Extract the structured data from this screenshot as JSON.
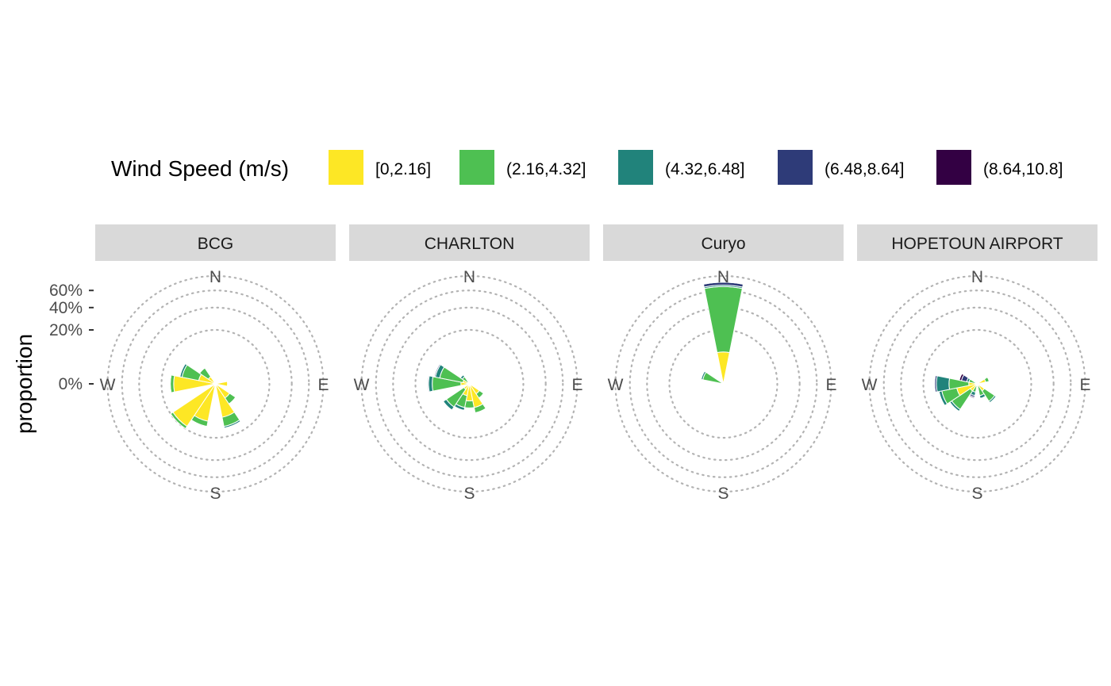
{
  "legend": {
    "title": "Wind Speed (m/s)",
    "items": [
      {
        "label": "[0,2.16]",
        "color": "#FDE725"
      },
      {
        "label": "(2.16,4.32]",
        "color": "#4EC052"
      },
      {
        "label": "(4.32,6.48]",
        "color": "#21837B"
      },
      {
        "label": "(6.48,8.64]",
        "color": "#2E3B78"
      },
      {
        "label": "(8.64,10.8]",
        "color": "#330043"
      }
    ]
  },
  "y_axis": {
    "title": "proportion",
    "ticks": [
      "0%",
      "20%",
      "40%",
      "60%"
    ]
  },
  "compass": {
    "n": "N",
    "e": "E",
    "s": "S",
    "w": "W"
  },
  "chart_data": {
    "type": "wind-rose (stacked polar bar)",
    "facets": [
      "BCG",
      "CHARLTON",
      "Curyo",
      "HOPETOUN AIRPORT"
    ],
    "series_names": [
      "[0,2.16]",
      "(2.16,4.32]",
      "(4.32,6.48]",
      "(6.48,8.64]",
      "(8.64,10.8]"
    ],
    "direction_sector_width_deg": 22.5,
    "radial_scale": "sqrt",
    "radial_breaks": [
      0,
      0.2,
      0.4,
      0.6,
      0.8
    ],
    "facet_data": [
      {
        "name": "BCG",
        "sectors": [
          {
            "dir": 90,
            "values": [
              0.01,
              0,
              0,
              0,
              0
            ]
          },
          {
            "dir": 135,
            "values": [
              0.02,
              0.02,
              0,
              0,
              0
            ]
          },
          {
            "dir": 157.5,
            "values": [
              0.08,
              0.05,
              0.01,
              0,
              0
            ]
          },
          {
            "dir": 202.5,
            "values": [
              0.1,
              0.03,
              0.005,
              0,
              0
            ]
          },
          {
            "dir": 225,
            "values": [
              0.18,
              0.02,
              0,
              0,
              0
            ]
          },
          {
            "dir": 270,
            "values": [
              0.12,
              0.02,
              0.005,
              0,
              0
            ]
          },
          {
            "dir": 292.5,
            "values": [
              0.02,
              0.06,
              0.01,
              0,
              0
            ]
          },
          {
            "dir": 315,
            "values": [
              0.005,
              0.02,
              0.002,
              0,
              0
            ]
          }
        ]
      },
      {
        "name": "CHARLTON",
        "sectors": [
          {
            "dir": 135,
            "values": [
              0.01,
              0.01,
              0,
              0,
              0
            ]
          },
          {
            "dir": 157.5,
            "values": [
              0.04,
              0.02,
              0,
              0,
              0
            ]
          },
          {
            "dir": 180,
            "values": [
              0.02,
              0.02,
              0,
              0,
              0
            ]
          },
          {
            "dir": 202.5,
            "values": [
              0.01,
              0.03,
              0.01,
              0,
              0
            ]
          },
          {
            "dir": 225,
            "values": [
              0.003,
              0.05,
              0.015,
              0,
              0
            ]
          },
          {
            "dir": 270,
            "values": [
              0.005,
              0.09,
              0.02,
              0.005,
              0
            ]
          },
          {
            "dir": 292.5,
            "values": [
              0.003,
              0.06,
              0.02,
              0.005,
              0
            ]
          },
          {
            "dir": 315,
            "values": [
              0,
              0.005,
              0.003,
              0,
              0
            ]
          }
        ]
      },
      {
        "name": "Curyo",
        "sectors": [
          {
            "dir": 0,
            "values": [
              0.07,
              0.58,
              0.02,
              0.04,
              0.005
            ]
          },
          {
            "dir": 292.5,
            "values": [
              0,
              0.03,
              0.005,
              0,
              0
            ]
          }
        ]
      },
      {
        "name": "HOPETOUN AIRPORT",
        "sectors": [
          {
            "dir": 67.5,
            "values": [
              0.005,
              0.005,
              0,
              0,
              0
            ]
          },
          {
            "dir": 135,
            "values": [
              0.005,
              0.025,
              0.005,
              0,
              0
            ]
          },
          {
            "dir": 157.5,
            "values": [
              0,
              0.01,
              0.005,
              0,
              0
            ]
          },
          {
            "dir": 202.5,
            "values": [
              0,
              0.005,
              0.005,
              0.003,
              0.002
            ]
          },
          {
            "dir": 225,
            "values": [
              0.005,
              0.06,
              0.01,
              0.003,
              0
            ]
          },
          {
            "dir": 247.5,
            "values": [
              0.03,
              0.06,
              0.015,
              0.002,
              0
            ]
          },
          {
            "dir": 270,
            "values": [
              0.005,
              0.05,
              0.06,
              0.01,
              0.003
            ]
          },
          {
            "dir": 292.5,
            "values": [
              0,
              0.005,
              0.003,
              0.01,
              0.005
            ]
          }
        ]
      }
    ]
  }
}
